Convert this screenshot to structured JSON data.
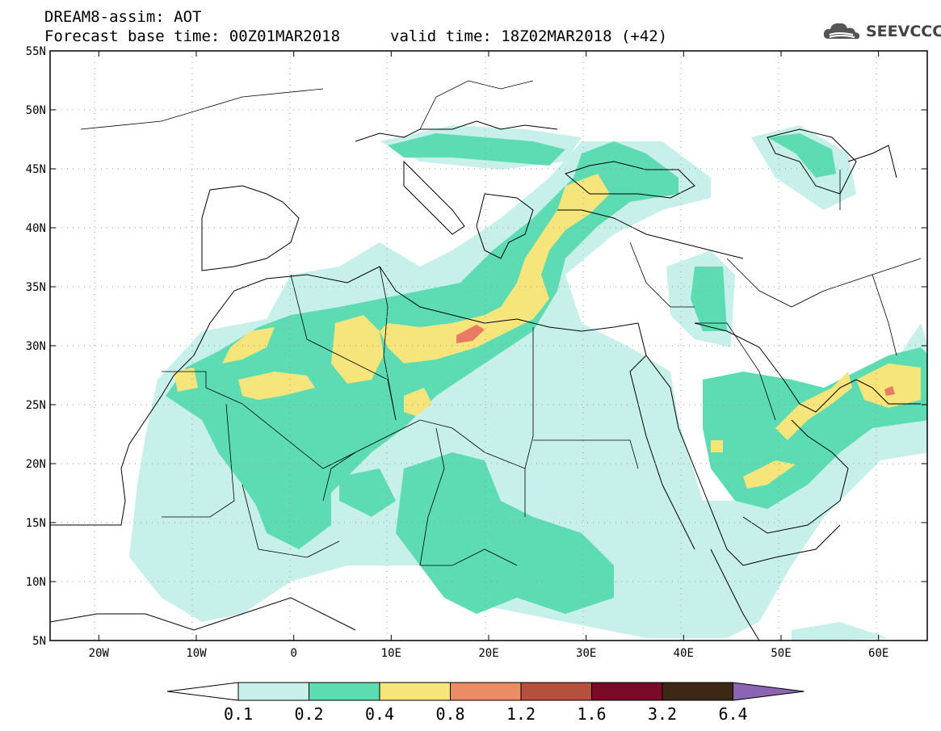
{
  "header": {
    "title": "DREAM8-assim: AOT",
    "base_time": "Forecast base time: 00Z01MAR2018",
    "valid_time": "valid time: 18Z02MAR2018 (+42)"
  },
  "logo": {
    "text": "SEEVCCC",
    "icon": "cloud-icon"
  },
  "map": {
    "lat_ticks": [
      "55N",
      "50N",
      "45N",
      "40N",
      "35N",
      "30N",
      "25N",
      "20N",
      "15N",
      "10N",
      "5N"
    ],
    "lon_ticks": [
      "20W",
      "10W",
      "0",
      "10E",
      "20E",
      "30E",
      "40E",
      "50E",
      "60E"
    ],
    "lon_range": [
      -25,
      65
    ],
    "lat_range": [
      5,
      55
    ]
  },
  "colorbar": {
    "labels": [
      "0.1",
      "0.2",
      "0.4",
      "0.8",
      "1.2",
      "1.6",
      "3.2",
      "6.4"
    ],
    "colors": [
      "#c8f0ea",
      "#5ddcb4",
      "#f5e57a",
      "#eb8c64",
      "#b4503c",
      "#7a0a28",
      "#3c2814",
      "#8c64b4"
    ]
  },
  "field_colors": {
    "low": "#c8f0ea",
    "mid": "#5ddcb4",
    "high": "#f5e57a",
    "peak": "#eb7a64"
  }
}
